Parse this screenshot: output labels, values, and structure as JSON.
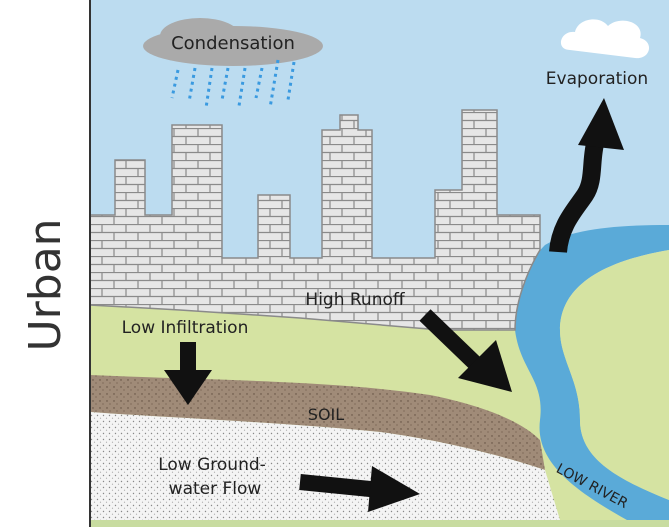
{
  "side_label": "Urban",
  "labels": {
    "condensation": "Condensation",
    "evaporation": "Evaporation",
    "runoff": "High Runoff",
    "infiltration": "Low Infiltration",
    "soil": "SOIL",
    "groundwater": [
      "Low Ground-",
      "water Flow"
    ],
    "river": "LOW RIVER"
  }
}
